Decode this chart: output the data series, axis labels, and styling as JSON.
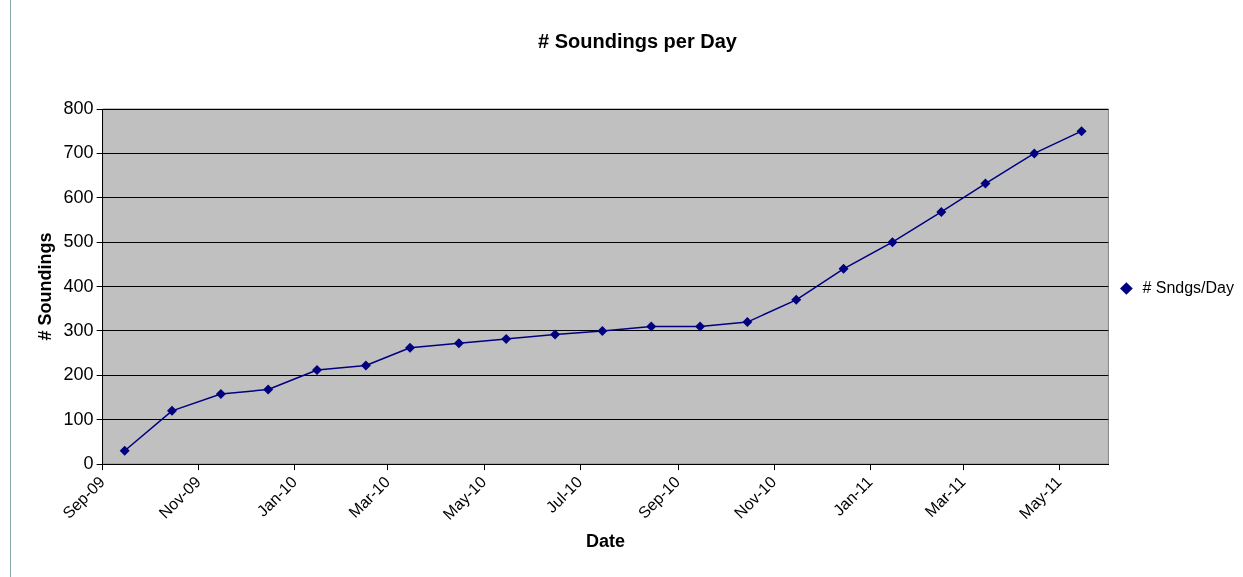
{
  "chart_data": {
    "type": "line",
    "title": "# Soundings per Day",
    "xlabel": "Date",
    "ylabel": "# Soundings",
    "x": [
      "2009-09-15",
      "2009-10-15",
      "2009-11-15",
      "2009-12-15",
      "2010-01-15",
      "2010-02-15",
      "2010-03-15",
      "2010-04-15",
      "2010-05-15",
      "2010-06-15",
      "2010-07-15",
      "2010-08-15",
      "2010-09-15",
      "2010-10-15",
      "2010-11-15",
      "2010-12-15",
      "2011-01-15",
      "2011-02-15",
      "2011-03-15",
      "2011-04-15",
      "2011-05-15"
    ],
    "series": [
      {
        "name": "# Sndgs/Day",
        "color": "#000080",
        "values": [
          30,
          120,
          158,
          168,
          212,
          222,
          262,
          272,
          282,
          292,
          300,
          310,
          310,
          320,
          370,
          440,
          500,
          568,
          632,
          700,
          750
        ]
      }
    ],
    "xlim": [
      "2009-09-01",
      "2011-06-01"
    ],
    "xticks": [
      {
        "value": "2009-09-01",
        "label": "Sep-09"
      },
      {
        "value": "2009-11-01",
        "label": "Nov-09"
      },
      {
        "value": "2010-01-01",
        "label": "Jan-10"
      },
      {
        "value": "2010-03-01",
        "label": "Mar-10"
      },
      {
        "value": "2010-05-01",
        "label": "May-10"
      },
      {
        "value": "2010-07-01",
        "label": "Jul-10"
      },
      {
        "value": "2010-09-01",
        "label": "Sep-10"
      },
      {
        "value": "2010-11-01",
        "label": "Nov-10"
      },
      {
        "value": "2011-01-01",
        "label": "Jan-11"
      },
      {
        "value": "2011-03-01",
        "label": "Mar-11"
      },
      {
        "value": "2011-05-01",
        "label": "May-11"
      }
    ],
    "ylim": [
      0,
      800
    ],
    "yticks": [
      0,
      100,
      200,
      300,
      400,
      500,
      600,
      700,
      800
    ],
    "grid": "y",
    "legend": "right",
    "marker": "diamond",
    "line_style": "solid"
  }
}
